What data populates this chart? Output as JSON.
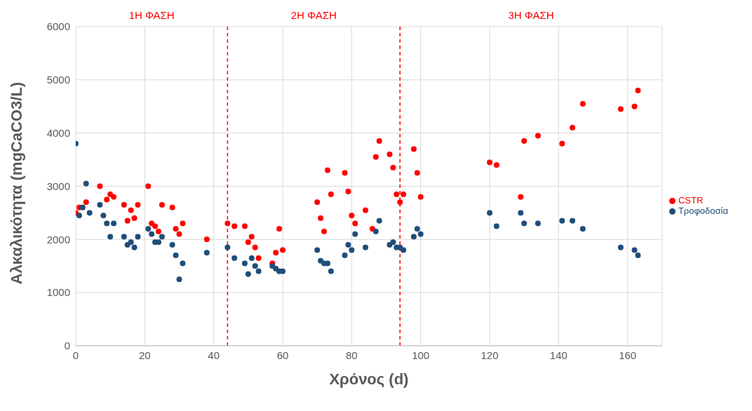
{
  "chart_data": {
    "type": "scatter",
    "xlabel": "Χρόνος (d)",
    "ylabel": "Αλκαλικότητα (mgCaCO3/L)",
    "xlim": [
      0,
      170
    ],
    "xticks": [
      0,
      20,
      40,
      60,
      80,
      100,
      120,
      140,
      160
    ],
    "ylim": [
      0,
      6000
    ],
    "yticks": [
      0,
      1000,
      2000,
      3000,
      4000,
      5000,
      6000
    ],
    "grid": true,
    "legend": "right",
    "marker": "circle",
    "series": [
      {
        "name": "CSTR",
        "color": "#ff0000",
        "x": [
          0,
          1,
          3,
          7,
          9,
          10,
          11,
          14,
          15,
          16,
          17,
          18,
          21,
          22,
          23,
          24,
          25,
          28,
          29,
          30,
          31,
          38,
          44,
          46,
          49,
          50,
          51,
          52,
          53,
          57,
          58,
          59,
          60,
          70,
          71,
          72,
          73,
          74,
          78,
          79,
          80,
          81,
          84,
          86,
          87,
          88,
          91,
          92,
          93,
          94,
          95,
          98,
          99,
          100,
          120,
          122,
          129,
          130,
          134,
          141,
          144,
          147,
          158,
          162,
          163
        ],
        "values": [
          2500,
          2600,
          2700,
          3000,
          2750,
          2850,
          2800,
          2650,
          2350,
          2550,
          2400,
          2650,
          3000,
          2300,
          2250,
          2150,
          2650,
          2600,
          2200,
          2100,
          2300,
          2000,
          2300,
          2250,
          2250,
          1950,
          2050,
          1850,
          1650,
          1550,
          1750,
          2200,
          1800,
          2700,
          2400,
          2150,
          3300,
          2850,
          3250,
          2900,
          2450,
          2300,
          2550,
          2200,
          3550,
          3850,
          3600,
          3350,
          2850,
          2700,
          2850,
          3700,
          3250,
          2800,
          3450,
          3400,
          2800,
          3850,
          3950,
          3800,
          4100,
          4550,
          4450,
          4500,
          4800
        ]
      },
      {
        "name": "Τροφοδοσία",
        "color": "#1f4e79",
        "x": [
          0,
          1,
          2,
          3,
          4,
          7,
          8,
          9,
          10,
          11,
          14,
          15,
          16,
          17,
          18,
          21,
          22,
          23,
          24,
          25,
          28,
          29,
          30,
          31,
          38,
          44,
          46,
          49,
          50,
          51,
          52,
          53,
          57,
          58,
          59,
          60,
          70,
          71,
          72,
          73,
          74,
          78,
          79,
          80,
          81,
          84,
          87,
          88,
          91,
          92,
          93,
          94,
          95,
          98,
          99,
          100,
          120,
          122,
          129,
          130,
          134,
          141,
          144,
          147,
          158,
          162,
          163
        ],
        "values": [
          3800,
          2450,
          2600,
          3050,
          2500,
          2650,
          2450,
          2300,
          2050,
          2300,
          2050,
          1900,
          1950,
          1850,
          2050,
          2200,
          2100,
          1950,
          1950,
          2050,
          1900,
          1700,
          1250,
          1550,
          1750,
          1850,
          1650,
          1550,
          1350,
          1650,
          1500,
          1400,
          1500,
          1450,
          1400,
          1400,
          1800,
          1600,
          1550,
          1550,
          1400,
          1700,
          1900,
          1800,
          2100,
          1850,
          2150,
          2350,
          1900,
          1950,
          1850,
          1850,
          1800,
          2050,
          2200,
          2100,
          2500,
          2250,
          2500,
          2300,
          2300,
          2350,
          2350,
          2200,
          1850,
          1800,
          1700
        ]
      }
    ],
    "ref_lines": [
      {
        "axis": "x",
        "value": 44,
        "color": "#ff0000",
        "line_style": "dashed"
      },
      {
        "axis": "x",
        "value": 94,
        "color": "#ff0000",
        "line_style": "dashed"
      }
    ],
    "annotations": [
      "1Η ΦΑΣΗ",
      "2Η ΦΑΣΗ",
      "3Η ΦΑΣΗ"
    ]
  }
}
